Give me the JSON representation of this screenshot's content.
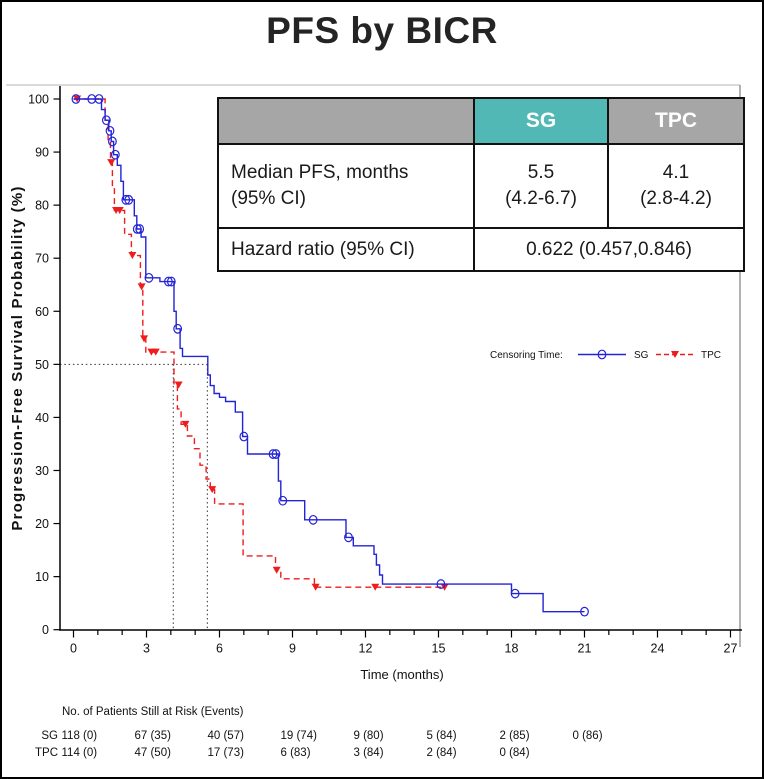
{
  "title": "PFS by BICR",
  "stats_table": {
    "columns": [
      "",
      "SG",
      "TPC"
    ],
    "median_row": {
      "label_line1": "Median PFS, months",
      "label_line2": "(95% CI)",
      "sg_line1": "5.5",
      "sg_line2": "(4.2-6.7)",
      "tpc_line1": "4.1",
      "tpc_line2": "(2.8-4.2)"
    },
    "hazard_row": {
      "label": "Hazard ratio (95% CI)",
      "value": "0.622 (0.457,0.846)"
    }
  },
  "legend": {
    "label": "Censoring Time:",
    "items": [
      {
        "name": "SG"
      },
      {
        "name": "TPC"
      }
    ]
  },
  "risk_table": {
    "title": "No. of Patients Still at Risk (Events)",
    "time_points": [
      0,
      3,
      6,
      9,
      12,
      15,
      18,
      21
    ],
    "rows": [
      {
        "label": "SG",
        "values": [
          "118 (0)",
          "67 (35)",
          "40 (57)",
          "19 (74)",
          "9 (80)",
          "5 (84)",
          "2 (85)",
          "0 (86)"
        ]
      },
      {
        "label": "TPC",
        "values": [
          "114 (0)",
          "47 (50)",
          "17 (73)",
          "6 (83)",
          "3 (84)",
          "2 (84)",
          "0 (84)"
        ]
      }
    ]
  },
  "chart_data": {
    "type": "line",
    "subtype": "kaplan-meier-step",
    "title": "PFS by BICR",
    "xlabel": "Time (months)",
    "ylabel": "Progression-Free Survival Probability (%)",
    "xlim": [
      0,
      27.5
    ],
    "ylim": [
      0,
      100
    ],
    "x_major_ticks": [
      0,
      3,
      6,
      9,
      12,
      15,
      18,
      21,
      24,
      27
    ],
    "x_minor_step": 1,
    "y_ticks": [
      0,
      10,
      20,
      30,
      40,
      50,
      60,
      70,
      80,
      90,
      100
    ],
    "grid": false,
    "legend_position": "right-middle",
    "reference_lines": {
      "horizontal_at": 50,
      "horizontal_extent_t": 5.5,
      "vertical_at": [
        4.1,
        5.5
      ]
    },
    "series": [
      {
        "name": "SG",
        "color": "#2323d7",
        "line_style": "solid",
        "marker": "open-circle",
        "median_months": 5.5,
        "steps": [
          [
            0,
            100
          ],
          [
            1.15,
            98
          ],
          [
            1.3,
            96
          ],
          [
            1.45,
            94
          ],
          [
            1.55,
            92
          ],
          [
            1.65,
            89.5
          ],
          [
            1.8,
            87.5
          ],
          [
            1.95,
            84.5
          ],
          [
            2.05,
            81
          ],
          [
            2.5,
            78
          ],
          [
            2.6,
            75.5
          ],
          [
            2.78,
            74
          ],
          [
            2.97,
            66.3
          ],
          [
            3.55,
            65.6
          ],
          [
            4.13,
            60
          ],
          [
            4.22,
            56.7
          ],
          [
            4.38,
            53
          ],
          [
            4.48,
            51.5
          ],
          [
            5.52,
            48
          ],
          [
            5.62,
            46
          ],
          [
            5.78,
            44.5
          ],
          [
            6.0,
            43.8
          ],
          [
            6.25,
            43
          ],
          [
            6.65,
            41
          ],
          [
            6.95,
            36.4
          ],
          [
            7.15,
            33.1
          ],
          [
            8.42,
            28
          ],
          [
            8.52,
            24.3
          ],
          [
            9.5,
            20.7
          ],
          [
            11.2,
            17.4
          ],
          [
            11.5,
            15.8
          ],
          [
            12.35,
            14.2
          ],
          [
            12.45,
            12.2
          ],
          [
            12.58,
            10.3
          ],
          [
            12.7,
            8.6
          ],
          [
            18.0,
            6.8
          ],
          [
            19.3,
            3.4
          ],
          [
            21.0,
            3.4
          ]
        ],
        "censor_marks": [
          [
            0.1,
            100
          ],
          [
            0.75,
            100
          ],
          [
            1.05,
            100
          ],
          [
            1.35,
            96
          ],
          [
            1.5,
            94
          ],
          [
            1.6,
            92
          ],
          [
            1.72,
            89.5
          ],
          [
            2.15,
            81
          ],
          [
            2.27,
            81
          ],
          [
            2.62,
            75.5
          ],
          [
            2.72,
            75.5
          ],
          [
            3.1,
            66.3
          ],
          [
            3.9,
            65.6
          ],
          [
            4.02,
            65.6
          ],
          [
            4.28,
            56.7
          ],
          [
            7.0,
            36.4
          ],
          [
            8.2,
            33.1
          ],
          [
            8.32,
            33.1
          ],
          [
            8.6,
            24.3
          ],
          [
            9.85,
            20.7
          ],
          [
            11.3,
            17.4
          ],
          [
            15.1,
            8.6
          ],
          [
            18.15,
            6.8
          ],
          [
            21.0,
            3.4
          ]
        ]
      },
      {
        "name": "TPC",
        "color": "#ee1c1c",
        "line_style": "dashed",
        "marker": "filled-triangle-down",
        "median_months": 4.1,
        "steps": [
          [
            0,
            100
          ],
          [
            1.3,
            96
          ],
          [
            1.42,
            92
          ],
          [
            1.52,
            88
          ],
          [
            1.6,
            83.5
          ],
          [
            1.68,
            79
          ],
          [
            2.1,
            74.5
          ],
          [
            2.38,
            70.5
          ],
          [
            2.75,
            64.6
          ],
          [
            2.85,
            54.8
          ],
          [
            2.97,
            52.3
          ],
          [
            4.13,
            46.1
          ],
          [
            4.27,
            41.6
          ],
          [
            4.42,
            38.7
          ],
          [
            4.68,
            36.5
          ],
          [
            4.97,
            34.1
          ],
          [
            5.2,
            31
          ],
          [
            5.45,
            28.4
          ],
          [
            5.62,
            26.4
          ],
          [
            5.8,
            23.7
          ],
          [
            6.97,
            13.9
          ],
          [
            8.3,
            11.2
          ],
          [
            8.52,
            9.6
          ],
          [
            9.9,
            8.0
          ],
          [
            15.3,
            8.0
          ]
        ],
        "censor_marks": [
          [
            0.15,
            100
          ],
          [
            1.55,
            88
          ],
          [
            1.75,
            79
          ],
          [
            1.9,
            79
          ],
          [
            2.42,
            70.5
          ],
          [
            2.8,
            64.6
          ],
          [
            2.9,
            54.8
          ],
          [
            3.2,
            52.3
          ],
          [
            3.38,
            52.3
          ],
          [
            4.32,
            46.1
          ],
          [
            4.6,
            38.7
          ],
          [
            5.7,
            26.4
          ],
          [
            8.35,
            11.2
          ],
          [
            9.95,
            8.0
          ],
          [
            12.4,
            8.0
          ],
          [
            15.25,
            8.0
          ]
        ]
      }
    ]
  },
  "colors": {
    "sg_series": "#2323d7",
    "tpc_series": "#ee1c1c",
    "sg_header_bg": "#52b8b5",
    "header_bg": "#a6a6a6",
    "header_text": "#ffffff",
    "table_border": "#111111",
    "title_text": "#242424",
    "axis": "#000000",
    "reference_line": "#333333"
  }
}
